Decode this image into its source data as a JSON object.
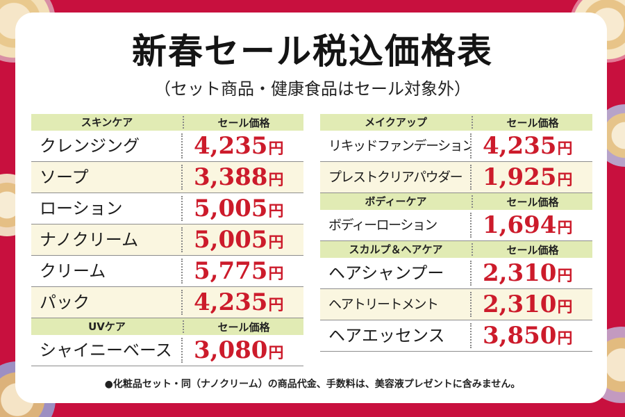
{
  "title": "新春セール税込価格表",
  "subtitle": "（セット商品・健康食品はセール対象外）",
  "price_header": "セール価格",
  "yen": "円",
  "left_sections": [
    {
      "category": "スキンケア",
      "items": [
        {
          "name": "クレンジング",
          "price": "4,235"
        },
        {
          "name": "ソープ",
          "price": "3,388"
        },
        {
          "name": "ローション",
          "price": "5,005"
        },
        {
          "name": "ナノクリーム",
          "price": "5,005"
        },
        {
          "name": "クリーム",
          "price": "5,775"
        },
        {
          "name": "パック",
          "price": "4,235"
        }
      ]
    },
    {
      "category": "UVケア",
      "items": [
        {
          "name": "シャイニーベース",
          "price": "3,080"
        }
      ]
    }
  ],
  "right_sections": [
    {
      "category": "メイクアップ",
      "items": [
        {
          "name": "リキッドファンデーション",
          "price": "4,235"
        },
        {
          "name": "プレストクリアパウダー",
          "price": "1,925"
        }
      ]
    },
    {
      "category": "ボディーケア",
      "items": [
        {
          "name": "ボディーローション",
          "price": "1,694"
        }
      ]
    },
    {
      "category": "スカルプ＆ヘアケア",
      "items": [
        {
          "name": "ヘアシャンプー",
          "price": "2,310"
        },
        {
          "name": "ヘアトリートメント",
          "price": "2,310"
        },
        {
          "name": "ヘアエッセンス",
          "price": "3,850"
        }
      ]
    }
  ],
  "footnote": "●化粧品セット・同（ナノクリーム）の商品代金、手数料は、美容液プレゼントに含みません。",
  "colors": {
    "background": "#c8103e",
    "header_fill": "#e1ebb4",
    "price_red": "#cc1b2b",
    "row_alt": "#faf6e0"
  }
}
